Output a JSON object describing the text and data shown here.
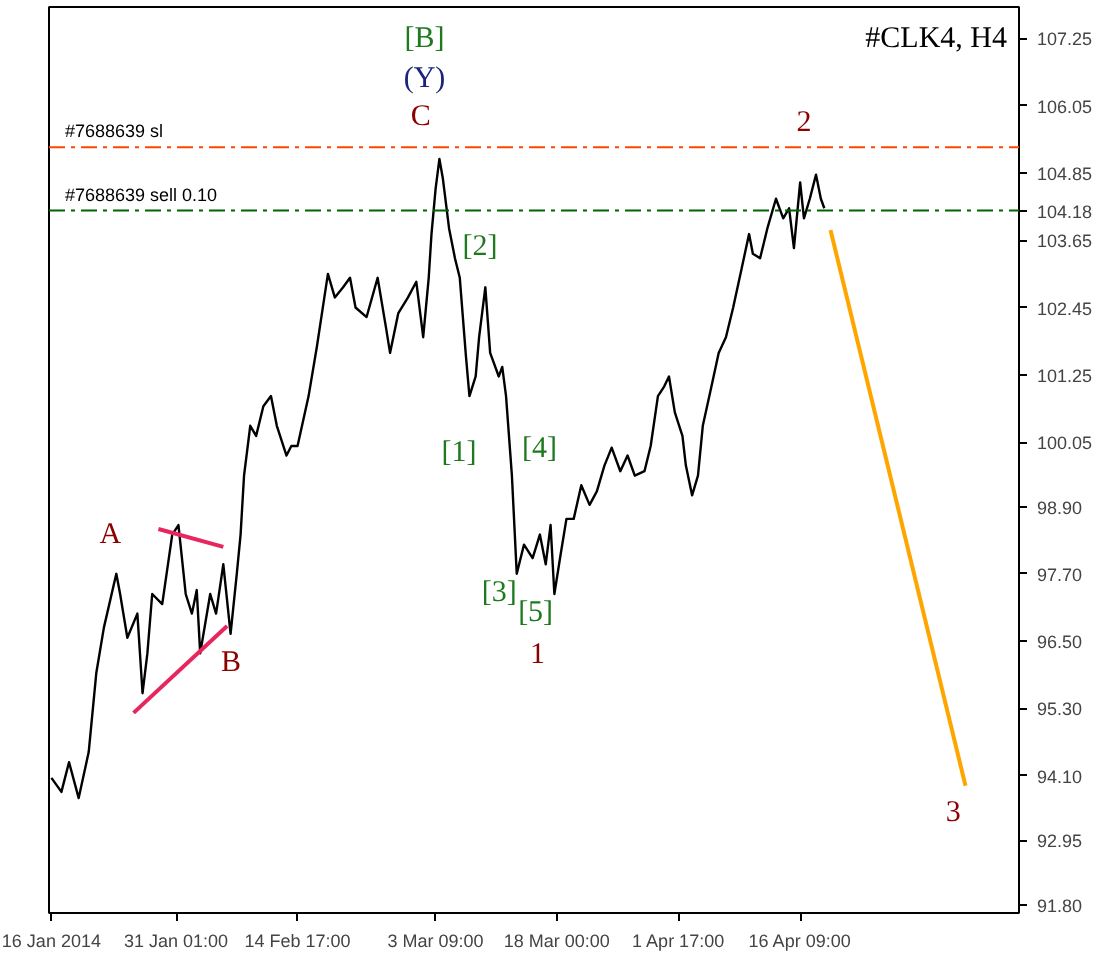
{
  "chart_data": {
    "type": "line",
    "title": "#CLK4, H4",
    "xlim": [
      "2014-01-15T17:00",
      "2014-05-12T19:00"
    ],
    "ylim": [
      91.65,
      107.81
    ],
    "xticks": [
      {
        "value": "2014-01-16T00:00",
        "label": "16 Jan 2014"
      },
      {
        "value": "2014-01-31T01:00",
        "label": "31 Jan 01:00"
      },
      {
        "value": "2014-02-14T17:00",
        "label": "14 Feb 17:00"
      },
      {
        "value": "2014-03-03T09:00",
        "label": "3 Mar 09:00"
      },
      {
        "value": "2014-03-18T00:00",
        "label": "18 Mar 00:00"
      },
      {
        "value": "2014-04-01T17:00",
        "label": "1 Apr 17:00"
      },
      {
        "value": "2014-04-16T09:00",
        "label": "16 Apr 09:00"
      }
    ],
    "yticks": [
      107.25,
      106.05,
      104.85,
      104.18,
      103.65,
      102.45,
      101.25,
      100.05,
      {
        "value": 98.9,
        "label": "98.90"
      },
      {
        "value": 97.7,
        "label": "97.70"
      },
      {
        "value": 96.5,
        "label": "96.50"
      },
      {
        "value": 95.3,
        "label": "95.30"
      },
      {
        "value": 94.1,
        "label": "94.10"
      },
      92.95,
      {
        "value": 91.8,
        "label": "91.80"
      }
    ],
    "grid": false,
    "series": [
      {
        "color": "#000000",
        "x": [
          "2014-01-16T00:00",
          "2014-01-17T05:00",
          "2014-01-18T03:00",
          "2014-01-19T07:00",
          "2014-01-20T12:00",
          "2014-01-21T10:00",
          "2014-01-22T08:00",
          "2014-01-23T20:00",
          "2014-01-24T07:00",
          "2014-01-25T04:00",
          "2014-01-26T09:00",
          "2014-01-27T00:00",
          "2014-01-27T14:00",
          "2014-01-28T04:00",
          "2014-01-29T09:00",
          "2014-01-30T14:00",
          "2014-01-31T08:00",
          "2014-02-01T05:00",
          "2014-02-01T23:00",
          "2014-02-02T13:00",
          "2014-02-02T23:00",
          "2014-02-04T04:00",
          "2014-02-04T21:00",
          "2014-02-05T18:00",
          "2014-02-06T15:00",
          "2014-02-07T09:00",
          "2014-02-07T20:00",
          "2014-02-08T06:00",
          "2014-02-09T00:00",
          "2014-02-09T17:00",
          "2014-02-10T14:00",
          "2014-02-11T12:00",
          "2014-02-12T05:00",
          "2014-02-13T09:00",
          "2014-02-13T23:00",
          "2014-02-14T17:00",
          "2014-02-16T01:00",
          "2014-02-17T01:00",
          "2014-02-18T09:00",
          "2014-02-19T05:00",
          "2014-02-20T05:00",
          "2014-02-21T01:00",
          "2014-02-21T17:00",
          "2014-02-23T01:00",
          "2014-02-24T09:00",
          "2014-02-25T09:00",
          "2014-02-25T21:00",
          "2014-02-26T21:00",
          "2014-02-28T01:00",
          "2014-03-01T01:00",
          "2014-03-01T21:00",
          "2014-03-02T13:00",
          "2014-03-02T21:00",
          "2014-03-03T09:00",
          "2014-03-03T20:00",
          "2014-03-04T06:00",
          "2014-03-05T00:00",
          "2014-03-05T17:00",
          "2014-03-06T07:00",
          "2014-03-07T01:00",
          "2014-03-07T11:00",
          "2014-03-08T05:00",
          "2014-03-08T15:00",
          "2014-03-09T09:00",
          "2014-03-09T23:00",
          "2014-03-11T00:00",
          "2014-03-11T10:00",
          "2014-03-11T21:00",
          "2014-03-12T14:00",
          "2014-03-13T04:00",
          "2014-03-14T01:00",
          "2014-03-15T02:00",
          "2014-03-15T23:00",
          "2014-03-16T16:00",
          "2014-03-17T06:00",
          "2014-03-17T17:00",
          "2014-03-18T11:00",
          "2014-03-19T04:00",
          "2014-03-20T01:00",
          "2014-03-20T23:00",
          "2014-03-21T23:00",
          "2014-03-22T20:00",
          "2014-03-23T18:00",
          "2014-03-24T15:00",
          "2014-03-25T16:00",
          "2014-03-26T13:00",
          "2014-03-27T10:00",
          "2014-03-28T14:00",
          "2014-03-29T08:00",
          "2014-03-30T05:00",
          "2014-03-30T23:00",
          "2014-03-31T13:00",
          "2014-04-01T06:00",
          "2014-04-02T04:00",
          "2014-04-02T14:00",
          "2014-04-03T08:00",
          "2014-04-04T01:00",
          "2014-04-04T15:00",
          "2014-04-05T16:00",
          "2014-04-06T13:00",
          "2014-04-07T10:00",
          "2014-04-08T07:00",
          "2014-04-09T08:00",
          "2014-04-10T05:00",
          "2014-04-10T16:00",
          "2014-04-11T13:00",
          "2014-04-12T10:00",
          "2014-04-13T11:00",
          "2014-04-14T08:00",
          "2014-04-15T01:00",
          "2014-04-15T15:00",
          "2014-04-16T09:00",
          "2014-04-16T20:00",
          "2014-04-17T13:00",
          "2014-04-18T07:00",
          "2014-04-18T21:00",
          "2014-04-19T07:00"
        ],
        "values": [
          94.06,
          93.81,
          94.34,
          93.7,
          94.52,
          95.93,
          96.74,
          97.7,
          97.34,
          96.56,
          96.99,
          95.57,
          96.28,
          97.34,
          97.16,
          98.4,
          98.57,
          97.34,
          96.99,
          97.41,
          96.28,
          97.34,
          96.99,
          97.87,
          96.63,
          97.7,
          98.4,
          99.45,
          100.34,
          100.16,
          100.69,
          100.87,
          100.34,
          99.81,
          99.98,
          99.98,
          100.87,
          101.75,
          103.05,
          102.63,
          102.81,
          102.98,
          102.45,
          102.28,
          102.98,
          102.1,
          101.64,
          102.35,
          102.63,
          102.91,
          101.92,
          102.98,
          103.76,
          104.57,
          105.1,
          104.75,
          103.86,
          103.33,
          102.98,
          101.57,
          100.87,
          101.22,
          101.92,
          102.81,
          101.64,
          101.22,
          101.39,
          100.87,
          99.45,
          97.7,
          98.22,
          97.98,
          98.4,
          97.87,
          98.57,
          97.34,
          98.04,
          98.68,
          98.68,
          99.28,
          98.93,
          99.17,
          99.63,
          99.95,
          99.53,
          99.81,
          99.45,
          99.53,
          99.98,
          100.87,
          101.04,
          101.22,
          100.58,
          100.16,
          99.63,
          99.1,
          99.45,
          100.34,
          101.04,
          101.64,
          101.92,
          102.45,
          103.16,
          103.76,
          103.41,
          103.33,
          103.86,
          104.39,
          104.04,
          104.22,
          103.51,
          104.68,
          104.04,
          104.39,
          104.82,
          104.39,
          104.22
        ]
      },
      {
        "color": "#e8265e",
        "x": [
          "2014-01-28T22:00",
          "2014-02-05T18:00"
        ],
        "values": [
          98.5,
          98.18
        ]
      },
      {
        "color": "#e8265e",
        "x": [
          "2014-01-25T22:00",
          "2014-02-06T05:00"
        ],
        "values": [
          95.22,
          96.77
        ]
      },
      {
        "color": "#ffa500",
        "x": [
          "2014-04-20T01:00",
          "2014-05-06T08:00"
        ],
        "values": [
          103.83,
          93.92
        ]
      }
    ],
    "ref_lines": [
      {
        "axis": "y",
        "value": 105.31,
        "label": "#7688639 sl",
        "color": "#ff4500",
        "line_style": "dashed"
      },
      {
        "axis": "y",
        "value": 104.18,
        "label": "#7688639 sell 0.10",
        "color": "#006400",
        "line_style": "dashed"
      }
    ],
    "annotations": [
      "[B]",
      "(Y)",
      "C",
      "[2]",
      "[1]",
      "[4]",
      "[3]",
      "[5]",
      "1",
      "A",
      "B",
      {
        "text": "2",
        "x": "2014-04-16T20:00",
        "y": 105.35
      },
      "3"
    ]
  }
}
